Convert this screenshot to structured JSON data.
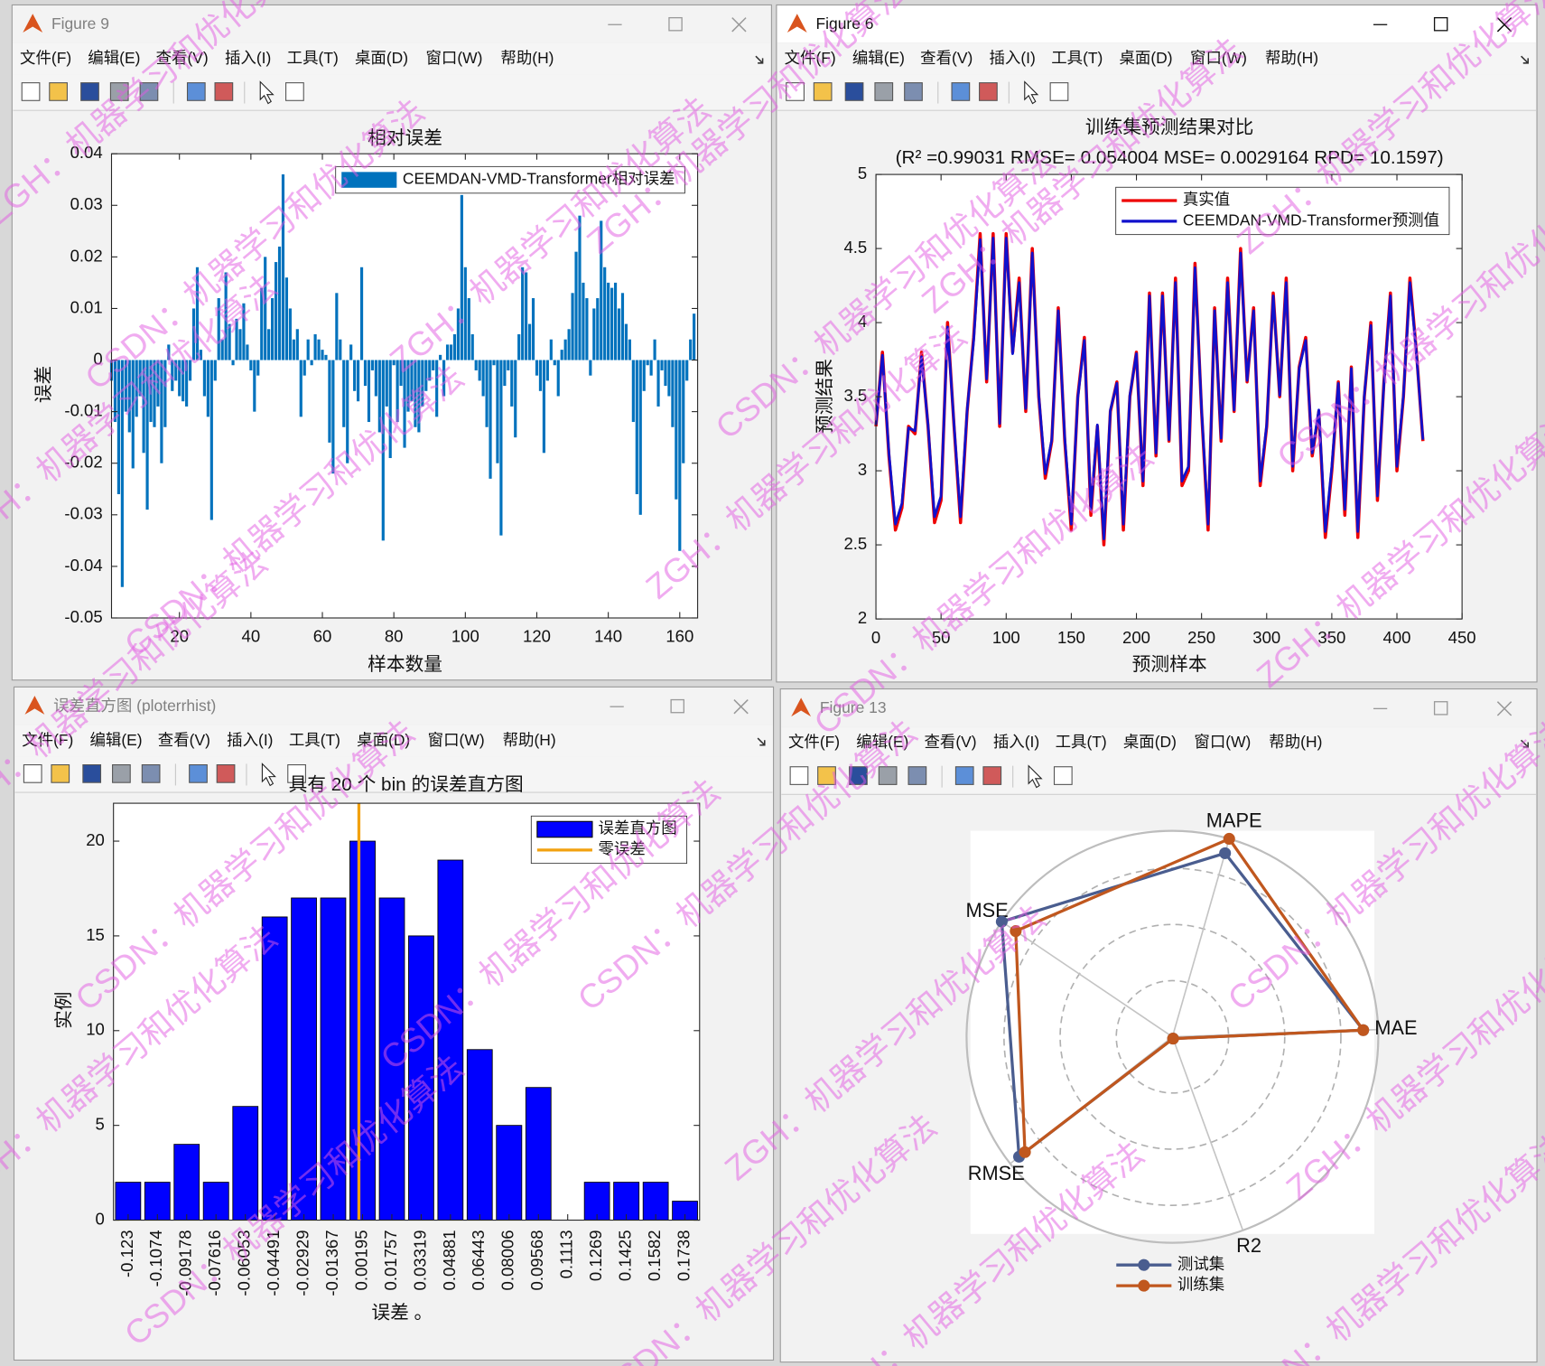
{
  "windows": [
    {
      "title": "Figure 9",
      "menu": [
        "文件(F)",
        "编辑(E)",
        "查看(V)",
        "插入(I)",
        "工具(T)",
        "桌面(D)",
        "窗口(W)",
        "帮助(H)"
      ]
    },
    {
      "title": "Figure 6",
      "menu": [
        "文件(F)",
        "编辑(E)",
        "查看(V)",
        "插入(I)",
        "工具(T)",
        "桌面(D)",
        "窗口(W)",
        "帮助(H)"
      ]
    },
    {
      "title": "误差直方图 (ploterrhist)",
      "menu": [
        "文件(F)",
        "编辑(E)",
        "查看(V)",
        "插入(I)",
        "工具(T)",
        "桌面(D)",
        "窗口(W)",
        "帮助(H)"
      ]
    },
    {
      "title": "Figure 13",
      "menu": [
        "文件(F)",
        "编辑(E)",
        "查看(V)",
        "插入(I)",
        "工具(T)",
        "桌面(D)",
        "窗口(W)",
        "帮助(H)"
      ]
    }
  ],
  "watermarks": [
    "ZGH：机器学习和优化算法",
    "CSDN：机器学习和优化算法"
  ],
  "chart_data": [
    {
      "type": "bar",
      "title": "相对误差",
      "xlabel": "样本数量",
      "ylabel": "误差",
      "x": [
        1,
        2,
        3,
        4,
        5,
        6,
        7,
        8,
        9,
        10,
        11,
        12,
        13,
        14,
        15,
        16,
        17,
        18,
        19,
        20,
        21,
        22,
        23,
        24,
        25,
        26,
        27,
        28,
        29,
        30,
        31,
        32,
        33,
        34,
        35,
        36,
        37,
        38,
        39,
        40,
        41,
        42,
        43,
        44,
        45,
        46,
        47,
        48,
        49,
        50,
        51,
        52,
        53,
        54,
        55,
        56,
        57,
        58,
        59,
        60,
        61,
        62,
        63,
        64,
        65,
        66,
        67,
        68,
        69,
        70,
        71,
        72,
        73,
        74,
        75,
        76,
        77,
        78,
        79,
        80,
        81,
        82,
        83,
        84,
        85,
        86,
        87,
        88,
        89,
        90,
        91,
        92,
        93,
        94,
        95,
        96,
        97,
        98,
        99,
        100,
        101,
        102,
        103,
        104,
        105,
        106,
        107,
        108,
        109,
        110,
        111,
        112,
        113,
        114,
        115,
        116,
        117,
        118,
        119,
        120,
        121,
        122,
        123,
        124,
        125,
        126,
        127,
        128,
        129,
        130,
        131,
        132,
        133,
        134,
        135,
        136,
        137,
        138,
        139,
        140,
        141,
        142,
        143,
        144,
        145,
        146,
        147,
        148,
        149,
        150,
        151,
        152,
        153,
        154,
        155,
        156,
        157,
        158,
        159,
        160,
        161,
        162,
        163,
        164
      ],
      "series": [
        {
          "name": "CEEMDAN-VMD-Transformer相对误差",
          "color": "#0072bd",
          "values": [
            -0.004,
            -0.012,
            -0.026,
            -0.044,
            -0.01,
            -0.014,
            -0.021,
            -0.011,
            -0.007,
            -0.018,
            -0.029,
            -0.012,
            -0.013,
            -0.009,
            -0.02,
            -0.013,
            0.003,
            -0.006,
            -0.004,
            -0.007,
            -0.008,
            -0.009,
            -0.004,
            0.01,
            0.018,
            0.002,
            -0.007,
            -0.011,
            -0.031,
            -0.004,
            0.012,
            0.004,
            0.017,
            0.007,
            -0.001,
            0.008,
            0.006,
            0.011,
            0.003,
            -0.002,
            -0.01,
            -0.003,
            0.014,
            0.02,
            0.006,
            0.012,
            0.019,
            0.022,
            0.036,
            0.016,
            0.01,
            0.004,
            0.006,
            -0.011,
            -0.003,
            0.004,
            -0.001,
            0.005,
            0.004,
            0.002,
            0.001,
            -0.016,
            -0.022,
            0.013,
            0.004,
            -0.013,
            -0.02,
            0.003,
            -0.006,
            -0.008,
            0.018,
            -0.005,
            -0.012,
            -0.002,
            -0.007,
            -0.014,
            -0.035,
            -0.009,
            -0.019,
            -0.001,
            -0.012,
            -0.005,
            -0.017,
            -0.01,
            -0.008,
            -0.013,
            -0.014,
            -0.009,
            -0.006,
            -0.004,
            -0.002,
            -0.011,
            0.001,
            -0.007,
            0.003,
            0.003,
            0.005,
            0.01,
            0.032,
            0.018,
            0.012,
            0.005,
            -0.002,
            -0.004,
            -0.007,
            -0.013,
            -0.023,
            -0.001,
            -0.02,
            -0.034,
            -0.005,
            -0.002,
            -0.009,
            -0.015,
            0.005,
            0.018,
            0.017,
            0.007,
            0.012,
            -0.003,
            -0.006,
            -0.018,
            -0.004,
            0.004,
            -0.001,
            -0.007,
            0.002,
            0.004,
            0.006,
            0.013,
            0.021,
            0.028,
            0.015,
            0.012,
            -0.003,
            0.01,
            0.012,
            0.027,
            0.018,
            0.015,
            0.014,
            0.015,
            0.01,
            0.013,
            0.007,
            0.004,
            -0.012,
            -0.026,
            -0.03,
            -0.006,
            -0.001,
            -0.003,
            0.004,
            -0.009,
            -0.002,
            -0.005,
            -0.007,
            -0.013,
            -0.027,
            -0.037,
            -0.02,
            -0.004,
            0.004,
            0.009
          ]
        }
      ],
      "xlim": [
        1,
        165
      ],
      "xticks": [
        20,
        40,
        60,
        80,
        100,
        120,
        140,
        160
      ],
      "ylim": [
        -0.05,
        0.04
      ],
      "yticks": [
        -0.05,
        -0.04,
        -0.03,
        -0.02,
        -0.01,
        0,
        0.01,
        0.02,
        0.03,
        0.04
      ],
      "grid": false,
      "legend": "upper right"
    },
    {
      "type": "line",
      "title": "训练集预测结果对比",
      "subtitle": "(R² =0.99031 RMSE= 0.054004 MSE= 0.0029164 RPD= 10.1597)",
      "xlabel": "预测样本",
      "ylabel": "预测结果",
      "x": [
        0,
        5,
        10,
        15,
        20,
        25,
        30,
        35,
        40,
        45,
        50,
        55,
        60,
        65,
        70,
        75,
        80,
        85,
        90,
        95,
        100,
        105,
        110,
        115,
        120,
        125,
        130,
        135,
        140,
        145,
        150,
        155,
        160,
        165,
        170,
        175,
        180,
        185,
        190,
        195,
        200,
        205,
        210,
        215,
        220,
        225,
        230,
        235,
        240,
        245,
        250,
        255,
        260,
        265,
        270,
        275,
        280,
        285,
        290,
        295,
        300,
        305,
        310,
        315,
        320,
        325,
        330,
        335,
        340,
        345,
        350,
        355,
        360,
        365,
        370,
        375,
        380,
        385,
        390,
        395,
        400,
        405,
        410,
        415,
        420
      ],
      "series": [
        {
          "name": "真实值",
          "color": "#ee0000",
          "values": [
            3.3,
            3.8,
            3.1,
            2.6,
            2.75,
            3.3,
            3.25,
            3.8,
            3.3,
            2.65,
            2.8,
            4.0,
            3.3,
            2.65,
            3.4,
            3.9,
            4.6,
            3.6,
            4.6,
            3.3,
            4.6,
            3.8,
            4.3,
            3.4,
            4.5,
            3.5,
            2.95,
            3.2,
            4.1,
            3.2,
            2.6,
            3.5,
            3.9,
            2.7,
            3.3,
            2.5,
            3.4,
            3.6,
            2.6,
            3.5,
            3.8,
            2.9,
            4.2,
            3.1,
            4.2,
            3.2,
            4.3,
            2.9,
            3.0,
            4.4,
            3.4,
            2.6,
            4.1,
            3.2,
            4.3,
            3.4,
            4.5,
            3.6,
            4.1,
            2.9,
            3.3,
            4.2,
            3.5,
            4.3,
            3.0,
            3.7,
            3.9,
            3.1,
            3.4,
            2.55,
            3.0,
            3.6,
            2.7,
            3.7,
            2.55,
            3.5,
            4.0,
            2.8,
            3.6,
            4.2,
            3.0,
            3.5,
            4.3,
            3.8,
            3.2
          ]
        },
        {
          "name": "CEEMDAN-VMD-Transformer预测值",
          "color": "#1010cc",
          "values": [
            3.31,
            3.78,
            3.12,
            2.64,
            2.78,
            3.29,
            3.27,
            3.77,
            3.31,
            2.69,
            2.83,
            3.97,
            3.31,
            2.69,
            3.41,
            3.88,
            4.56,
            3.62,
            4.57,
            3.32,
            4.57,
            3.79,
            4.27,
            3.42,
            4.47,
            3.51,
            2.98,
            3.21,
            4.08,
            3.22,
            2.64,
            3.49,
            3.88,
            2.74,
            3.31,
            2.54,
            3.41,
            3.59,
            2.64,
            3.51,
            3.79,
            2.93,
            4.18,
            3.12,
            4.18,
            3.21,
            4.27,
            2.93,
            3.03,
            4.37,
            3.41,
            2.64,
            4.08,
            3.22,
            4.27,
            3.41,
            4.47,
            3.61,
            4.08,
            2.93,
            3.31,
            4.18,
            3.51,
            4.27,
            3.03,
            3.69,
            3.88,
            3.12,
            3.41,
            2.59,
            3.03,
            3.59,
            2.74,
            3.69,
            2.59,
            3.51,
            3.98,
            2.83,
            3.59,
            4.18,
            3.03,
            3.51,
            4.27,
            3.79,
            3.21
          ]
        }
      ],
      "xlim": [
        0,
        450
      ],
      "xticks": [
        0,
        50,
        100,
        150,
        200,
        250,
        300,
        350,
        400,
        450
      ],
      "ylim": [
        2,
        5
      ],
      "yticks": [
        2,
        2.5,
        3,
        3.5,
        4,
        4.5,
        5
      ],
      "grid": false,
      "legend": "upper right"
    },
    {
      "type": "histogram",
      "title": "具有 20 个 bin 的误差直方图",
      "xlabel": "误差  。",
      "ylabel": "实例",
      "bins": [
        -0.1308,
        -0.1152,
        -0.0996,
        -0.084,
        -0.0683,
        -0.0527,
        -0.0371,
        -0.0215,
        -0.0059,
        0.0098,
        0.0254,
        0.041,
        0.0566,
        0.0722,
        0.0879,
        0.1035,
        0.1191,
        0.1347,
        0.1504,
        0.166,
        0.1816
      ],
      "series": [
        {
          "name": "误差直方图",
          "color": "#0000ff",
          "values": [
            2,
            2,
            4,
            2,
            6,
            16,
            17,
            17,
            20,
            17,
            15,
            19,
            9,
            5,
            7,
            0,
            2,
            2,
            2,
            1
          ]
        }
      ],
      "vlines": [
        {
          "name": "零误差",
          "color": "#f2a10f",
          "x": 0
        }
      ],
      "xlim": [
        -0.1308,
        0.1816
      ],
      "xticks": [
        -0.123,
        -0.1074,
        -0.09178,
        -0.07616,
        -0.06053,
        -0.04491,
        -0.02929,
        -0.01367,
        0.00195,
        0.01757,
        0.03319,
        0.04881,
        0.06443,
        0.08006,
        0.09568,
        0.1113,
        0.1269,
        0.1425,
        0.1582,
        0.1738
      ],
      "ylim": [
        0,
        22
      ],
      "yticks": [
        0,
        5,
        10,
        15,
        20
      ],
      "grid": false,
      "legend": "upper right"
    },
    {
      "type": "radar",
      "axes": [
        "MAPE",
        "MAE",
        "R2",
        "RMSE",
        "MSE"
      ],
      "series": [
        {
          "name": "测试集",
          "color": "#4a5d8f",
          "values": [
            1.02,
            1.02,
            0.01,
            1.04,
            1.1
          ]
        },
        {
          "name": "训练集",
          "color": "#c0571e",
          "values": [
            1.1,
            1.02,
            0.01,
            1.0,
            1.01
          ]
        }
      ],
      "rlim": [
        0,
        1.1
      ],
      "rticks": [
        0.3,
        0.6,
        0.9
      ],
      "legend": "bottom"
    }
  ]
}
